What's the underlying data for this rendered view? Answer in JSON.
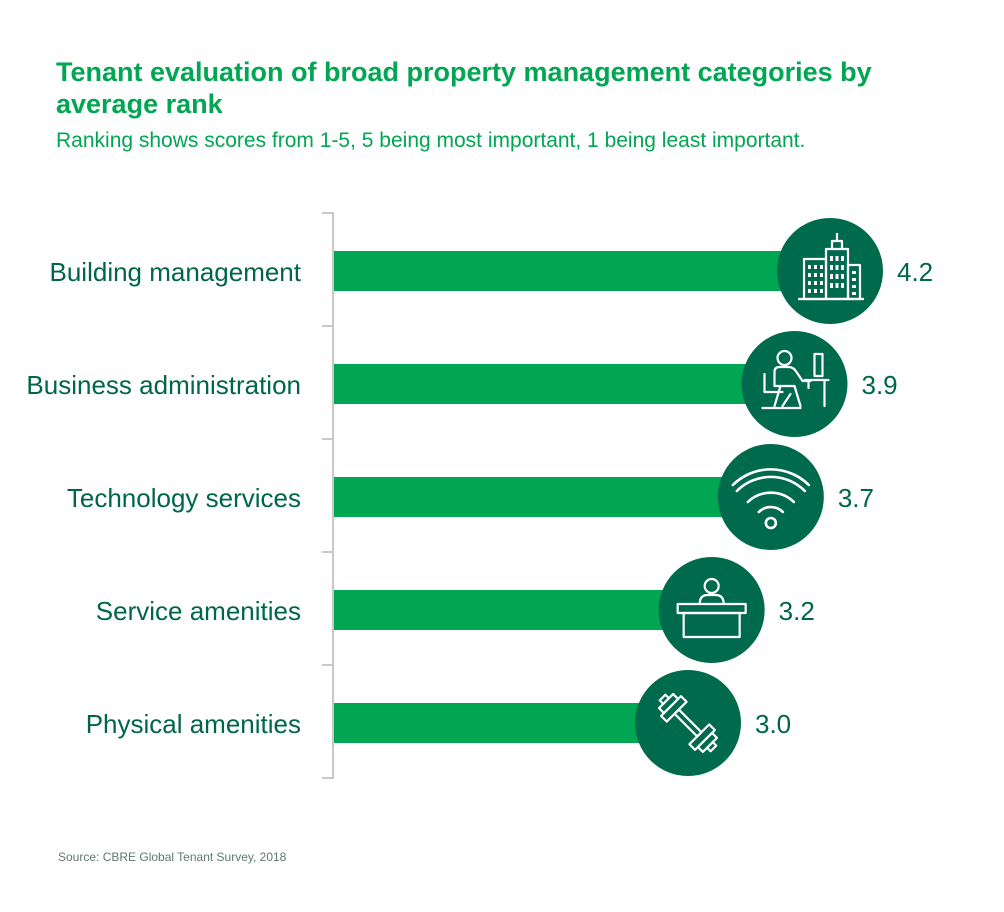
{
  "title": "Tenant evaluation of broad property management categories by average rank",
  "subtitle": "Ranking shows scores from 1-5, 5 being most important, 1 being least important.",
  "source": "Source: CBRE Global Tenant Survey, 2018",
  "colors": {
    "bar": "#00a651",
    "circle": "#006a4d",
    "label": "#00664a",
    "title": "#00a651",
    "axis": "#c8c8c8"
  },
  "chart_data": {
    "type": "bar",
    "orientation": "horizontal",
    "categories": [
      "Building management",
      "Business administration",
      "Technology services",
      "Service amenities",
      "Physical amenities"
    ],
    "values": [
      4.2,
      3.9,
      3.7,
      3.2,
      3.0
    ],
    "value_labels": [
      "4.2",
      "3.9",
      "3.7",
      "3.2",
      "3.0"
    ],
    "icons": [
      "office-building-icon",
      "office-worker-desk-icon",
      "wifi-icon",
      "reception-desk-icon",
      "dumbbell-icon"
    ],
    "xlim": [
      0,
      4.2
    ],
    "grid": false,
    "legend": "none"
  }
}
